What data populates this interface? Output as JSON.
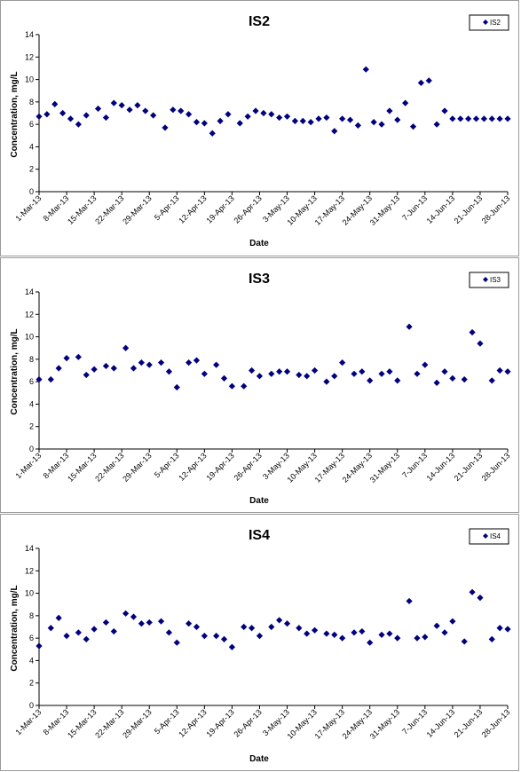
{
  "theme": {
    "marker_color": "#00007f",
    "axis_color": "#000000",
    "border_color": "#9a9a9a"
  },
  "chart_data": [
    {
      "type": "scatter",
      "title": "IS2",
      "xlabel": "Date",
      "ylabel": "Concentration, mg/L",
      "legend": "top-right",
      "grid": false,
      "ylim": [
        0,
        14
      ],
      "yticks": [
        "0",
        "2",
        "4",
        "6",
        "8",
        "10",
        "12",
        "14"
      ],
      "xlim": [
        "1-Mar-13",
        "28-Jun-13"
      ],
      "xtick_labels": [
        "1-Mar-13",
        "8-Mar-13",
        "15-Mar-13",
        "22-Mar-13",
        "29-Mar-13",
        "5-Apr-13",
        "12-Apr-13",
        "19-Apr-13",
        "26-Apr-13",
        "3-May-13",
        "10-May-13",
        "17-May-13",
        "24-May-13",
        "31-May-13",
        "7-Jun-13",
        "14-Jun-13",
        "21-Jun-13",
        "28-Jun-13"
      ],
      "series": [
        {
          "name": "IS2",
          "color": "#00007f",
          "marker": "diamond",
          "x": [
            "1-Mar-13",
            "3-Mar-13",
            "5-Mar-13",
            "7-Mar-13",
            "9-Mar-13",
            "11-Mar-13",
            "13-Mar-13",
            "16-Mar-13",
            "18-Mar-13",
            "20-Mar-13",
            "22-Mar-13",
            "24-Mar-13",
            "26-Mar-13",
            "28-Mar-13",
            "30-Mar-13",
            "2-Apr-13",
            "4-Apr-13",
            "6-Apr-13",
            "8-Apr-13",
            "10-Apr-13",
            "12-Apr-13",
            "14-Apr-13",
            "16-Apr-13",
            "18-Apr-13",
            "21-Apr-13",
            "23-Apr-13",
            "25-Apr-13",
            "27-Apr-13",
            "29-Apr-13",
            "1-May-13",
            "3-May-13",
            "5-May-13",
            "7-May-13",
            "9-May-13",
            "11-May-13",
            "13-May-13",
            "15-May-13",
            "17-May-13",
            "19-May-13",
            "21-May-13",
            "23-May-13",
            "25-May-13",
            "27-May-13",
            "29-May-13",
            "31-May-13",
            "2-Jun-13",
            "4-Jun-13",
            "6-Jun-13",
            "8-Jun-13",
            "10-Jun-13",
            "12-Jun-13",
            "14-Jun-13",
            "16-Jun-13",
            "18-Jun-13",
            "20-Jun-13",
            "22-Jun-13",
            "24-Jun-13",
            "26-Jun-13",
            "28-Jun-13"
          ],
          "y": [
            6.7,
            6.9,
            7.8,
            7.0,
            6.5,
            6.0,
            6.8,
            7.4,
            6.6,
            7.9,
            7.7,
            7.3,
            7.7,
            7.2,
            6.8,
            5.7,
            7.3,
            7.2,
            6.9,
            6.2,
            6.1,
            5.2,
            6.3,
            6.9,
            6.1,
            6.7,
            7.2,
            7.0,
            6.9,
            6.6,
            6.7,
            6.3,
            6.3,
            6.2,
            6.5,
            6.6,
            5.4,
            6.5,
            6.4,
            5.9,
            10.9,
            6.2,
            6.0,
            7.2,
            6.4,
            7.9,
            5.8,
            9.7,
            9.9,
            6.0,
            7.2,
            6.5,
            6.5,
            6.5,
            6.5,
            6.5,
            6.5,
            6.5,
            6.5
          ]
        }
      ]
    },
    {
      "type": "scatter",
      "title": "IS3",
      "xlabel": "Date",
      "ylabel": "Concentration, mg/L",
      "legend": "top-right",
      "grid": false,
      "ylim": [
        0,
        14
      ],
      "yticks": [
        "0",
        "2",
        "4",
        "6",
        "8",
        "10",
        "12",
        "14"
      ],
      "xlim": [
        "1-Mar-13",
        "28-Jun-13"
      ],
      "xtick_labels": [
        "1-Mar-13",
        "8-Mar-13",
        "15-Mar-13",
        "22-Mar-13",
        "29-Mar-13",
        "5-Apr-13",
        "12-Apr-13",
        "19-Apr-13",
        "26-Apr-13",
        "3-May-13",
        "10-May-13",
        "17-May-13",
        "24-May-13",
        "31-May-13",
        "7-Jun-13",
        "14-Jun-13",
        "21-Jun-13",
        "28-Jun-13"
      ],
      "series": [
        {
          "name": "IS3",
          "color": "#00007f",
          "marker": "diamond",
          "x": [
            "1-Mar-13",
            "4-Mar-13",
            "6-Mar-13",
            "8-Mar-13",
            "11-Mar-13",
            "13-Mar-13",
            "15-Mar-13",
            "18-Mar-13",
            "20-Mar-13",
            "23-Mar-13",
            "25-Mar-13",
            "27-Mar-13",
            "29-Mar-13",
            "1-Apr-13",
            "3-Apr-13",
            "5-Apr-13",
            "8-Apr-13",
            "10-Apr-13",
            "12-Apr-13",
            "15-Apr-13",
            "17-Apr-13",
            "19-Apr-13",
            "22-Apr-13",
            "24-Apr-13",
            "26-Apr-13",
            "29-Apr-13",
            "1-May-13",
            "3-May-13",
            "6-May-13",
            "8-May-13",
            "10-May-13",
            "13-May-13",
            "15-May-13",
            "17-May-13",
            "20-May-13",
            "22-May-13",
            "24-May-13",
            "27-May-13",
            "29-May-13",
            "31-May-13",
            "3-Jun-13",
            "5-Jun-13",
            "7-Jun-13",
            "10-Jun-13",
            "12-Jun-13",
            "14-Jun-13",
            "17-Jun-13",
            "19-Jun-13",
            "21-Jun-13",
            "24-Jun-13",
            "26-Jun-13",
            "28-Jun-13"
          ],
          "y": [
            6.2,
            6.2,
            7.2,
            8.1,
            8.2,
            6.6,
            7.1,
            7.4,
            7.2,
            9.0,
            7.2,
            7.7,
            7.5,
            7.7,
            6.9,
            5.5,
            7.7,
            7.9,
            6.7,
            7.5,
            6.3,
            5.6,
            5.6,
            7.0,
            6.5,
            6.7,
            6.9,
            6.9,
            6.6,
            6.5,
            7.0,
            6.0,
            6.5,
            7.7,
            6.7,
            6.9,
            6.1,
            6.7,
            6.9,
            6.1,
            10.9,
            6.7,
            7.5,
            5.9,
            6.9,
            6.3,
            6.2,
            10.4,
            9.4,
            6.1,
            7.0,
            6.9
          ]
        }
      ]
    },
    {
      "type": "scatter",
      "title": "IS4",
      "xlabel": "Date",
      "ylabel": "Concentration, mg/L",
      "legend": "top-right",
      "grid": false,
      "ylim": [
        0,
        14
      ],
      "yticks": [
        "0",
        "2",
        "4",
        "6",
        "8",
        "10",
        "12",
        "14"
      ],
      "xlim": [
        "1-Mar-13",
        "28-Jun-13"
      ],
      "xtick_labels": [
        "1-Mar-13",
        "8-Mar-13",
        "15-Mar-13",
        "22-Mar-13",
        "29-Mar-13",
        "5-Apr-13",
        "12-Apr-13",
        "19-Apr-13",
        "26-Apr-13",
        "3-May-13",
        "10-May-13",
        "17-May-13",
        "24-May-13",
        "31-May-13",
        "7-Jun-13",
        "14-Jun-13",
        "21-Jun-13",
        "28-Jun-13"
      ],
      "series": [
        {
          "name": "IS4",
          "color": "#00007f",
          "marker": "diamond",
          "x": [
            "1-Mar-13",
            "4-Mar-13",
            "6-Mar-13",
            "8-Mar-13",
            "11-Mar-13",
            "13-Mar-13",
            "15-Mar-13",
            "18-Mar-13",
            "20-Mar-13",
            "23-Mar-13",
            "25-Mar-13",
            "27-Mar-13",
            "29-Mar-13",
            "1-Apr-13",
            "3-Apr-13",
            "5-Apr-13",
            "8-Apr-13",
            "10-Apr-13",
            "12-Apr-13",
            "15-Apr-13",
            "17-Apr-13",
            "19-Apr-13",
            "22-Apr-13",
            "24-Apr-13",
            "26-Apr-13",
            "29-Apr-13",
            "1-May-13",
            "3-May-13",
            "6-May-13",
            "8-May-13",
            "10-May-13",
            "13-May-13",
            "15-May-13",
            "17-May-13",
            "20-May-13",
            "22-May-13",
            "24-May-13",
            "27-May-13",
            "29-May-13",
            "31-May-13",
            "3-Jun-13",
            "5-Jun-13",
            "7-Jun-13",
            "10-Jun-13",
            "12-Jun-13",
            "14-Jun-13",
            "17-Jun-13",
            "19-Jun-13",
            "21-Jun-13",
            "24-Jun-13",
            "26-Jun-13",
            "28-Jun-13"
          ],
          "y": [
            5.3,
            6.9,
            7.8,
            6.2,
            6.5,
            5.9,
            6.8,
            7.4,
            6.6,
            8.2,
            7.9,
            7.3,
            7.4,
            7.5,
            6.5,
            5.6,
            7.3,
            7.0,
            6.2,
            6.2,
            5.9,
            5.2,
            7.0,
            6.9,
            6.2,
            7.0,
            7.6,
            7.3,
            6.9,
            6.4,
            6.7,
            6.4,
            6.3,
            6.0,
            6.5,
            6.6,
            5.6,
            6.3,
            6.4,
            6.0,
            9.3,
            6.0,
            6.1,
            7.1,
            6.5,
            7.5,
            5.7,
            10.1,
            9.6,
            5.9,
            6.9,
            6.8
          ]
        }
      ]
    }
  ]
}
